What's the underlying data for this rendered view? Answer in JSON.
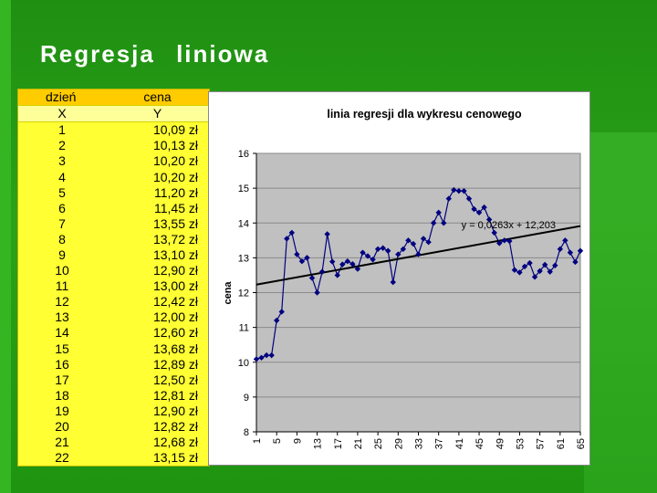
{
  "slide": {
    "title": "Regresja liniowa"
  },
  "table": {
    "headers": [
      "dzień",
      "cena"
    ],
    "subheaders": [
      "X",
      "Y"
    ],
    "rows": [
      [
        "1",
        "10,09 zł"
      ],
      [
        "2",
        "10,13 zł"
      ],
      [
        "3",
        "10,20 zł"
      ],
      [
        "4",
        "10,20 zł"
      ],
      [
        "5",
        "11,20 zł"
      ],
      [
        "6",
        "11,45 zł"
      ],
      [
        "7",
        "13,55 zł"
      ],
      [
        "8",
        "13,72 zł"
      ],
      [
        "9",
        "13,10 zł"
      ],
      [
        "10",
        "12,90 zł"
      ],
      [
        "11",
        "13,00 zł"
      ],
      [
        "12",
        "12,42 zł"
      ],
      [
        "13",
        "12,00 zł"
      ],
      [
        "14",
        "12,60 zł"
      ],
      [
        "15",
        "13,68 zł"
      ],
      [
        "16",
        "12,89 zł"
      ],
      [
        "17",
        "12,50 zł"
      ],
      [
        "18",
        "12,81 zł"
      ],
      [
        "19",
        "12,90 zł"
      ],
      [
        "20",
        "12,82 zł"
      ],
      [
        "21",
        "12,68 zł"
      ],
      [
        "22",
        "13,15 zł"
      ]
    ]
  },
  "chart_data": {
    "type": "line",
    "title": "linia regresji dla wykresu cenowego",
    "xlabel": "",
    "ylabel": "cena",
    "ylim": [
      8,
      16
    ],
    "yticks": [
      8,
      9,
      10,
      11,
      12,
      13,
      14,
      15,
      16
    ],
    "xlim": [
      1,
      65
    ],
    "xticks": [
      1,
      5,
      9,
      13,
      17,
      21,
      25,
      29,
      33,
      37,
      41,
      45,
      49,
      53,
      57,
      61,
      65
    ],
    "grid": true,
    "plot_background": "#c0c0c0",
    "series": [
      {
        "color": "#000080",
        "marker": "diamond",
        "x": [
          1,
          2,
          3,
          4,
          5,
          6,
          7,
          8,
          9,
          10,
          11,
          12,
          13,
          14,
          15,
          16,
          17,
          18,
          19,
          20,
          21,
          22,
          23,
          24,
          25,
          26,
          27,
          28,
          29,
          30,
          31,
          32,
          33,
          34,
          35,
          36,
          37,
          38,
          39,
          40,
          41,
          42,
          43,
          44,
          45,
          46,
          47,
          48,
          49,
          50,
          51,
          52,
          53,
          54,
          55,
          56,
          57,
          58,
          59,
          60,
          61,
          62,
          63,
          64,
          65
        ],
        "y": [
          10.09,
          10.13,
          10.2,
          10.2,
          11.2,
          11.45,
          13.55,
          13.72,
          13.1,
          12.9,
          13.0,
          12.42,
          12.0,
          12.6,
          13.68,
          12.89,
          12.5,
          12.81,
          12.9,
          12.82,
          12.68,
          13.15,
          13.05,
          12.95,
          13.25,
          13.28,
          13.2,
          12.3,
          13.1,
          13.25,
          13.5,
          13.4,
          13.1,
          13.55,
          13.45,
          14.0,
          14.3,
          14.0,
          14.7,
          14.95,
          14.92,
          14.92,
          14.7,
          14.4,
          14.3,
          14.45,
          14.1,
          13.72,
          13.42,
          13.5,
          13.48,
          12.65,
          12.58,
          12.75,
          12.85,
          12.45,
          12.62,
          12.8,
          12.6,
          12.78,
          13.25,
          13.5,
          13.15,
          12.88,
          13.2
        ]
      }
    ],
    "trendline": {
      "slope": 0.0263,
      "intercept": 12.203,
      "label": "y = 0,0263x + 12,203",
      "color": "#000000"
    }
  }
}
